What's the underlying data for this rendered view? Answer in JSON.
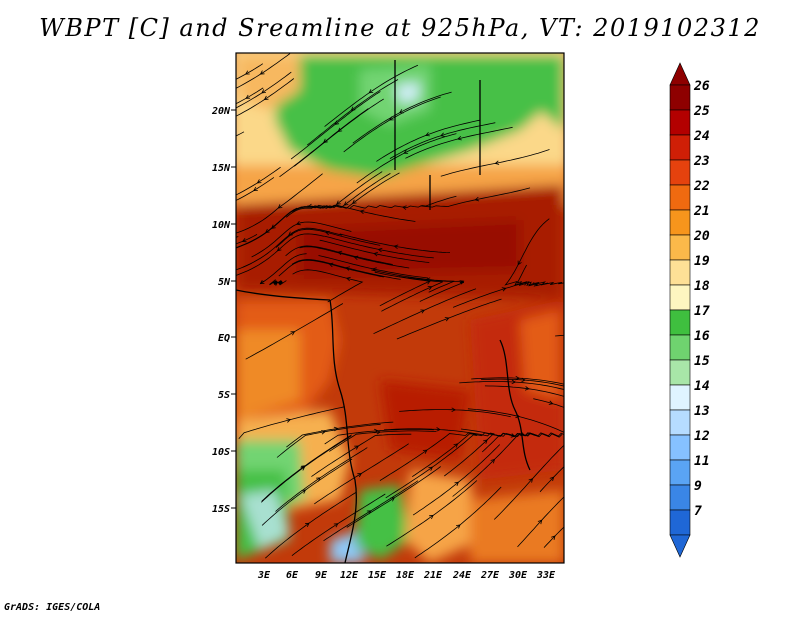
{
  "title": "WBPT [C] and Sreamline at 925hPa, VT: 2019102312",
  "credit": "GrADS: IGES/COLA",
  "lat_ticks": [
    "20N",
    "15N",
    "10N",
    "5N",
    "EQ",
    "5S",
    "10S",
    "15S"
  ],
  "lon_ticks": [
    "3E",
    "6E",
    "9E",
    "12E",
    "15E",
    "18E",
    "21E",
    "24E",
    "27E",
    "30E",
    "33E"
  ],
  "colorbar": {
    "labels": [
      "26",
      "25",
      "24",
      "23",
      "22",
      "21",
      "20",
      "19",
      "18",
      "17",
      "16",
      "15",
      "14",
      "13",
      "12",
      "11",
      "9",
      "7"
    ],
    "colors": [
      "#8e0000",
      "#b30000",
      "#cf1f06",
      "#e5420e",
      "#f06a10",
      "#f7951c",
      "#fbb94a",
      "#fde096",
      "#fdf6c0",
      "#3fbf3f",
      "#6fd36f",
      "#a8e6a8",
      "#dff4ff",
      "#b6dcff",
      "#86c1ff",
      "#5aa4f4",
      "#3a86e6",
      "#1f67d6"
    ]
  },
  "colors": {
    "hot": "#b32000",
    "warm": "#e0641a",
    "orange": "#f5a040",
    "cream": "#fde096",
    "green": "#45c045",
    "lightgreen": "#8fdc8f",
    "blue": "#8fc7f5"
  }
}
